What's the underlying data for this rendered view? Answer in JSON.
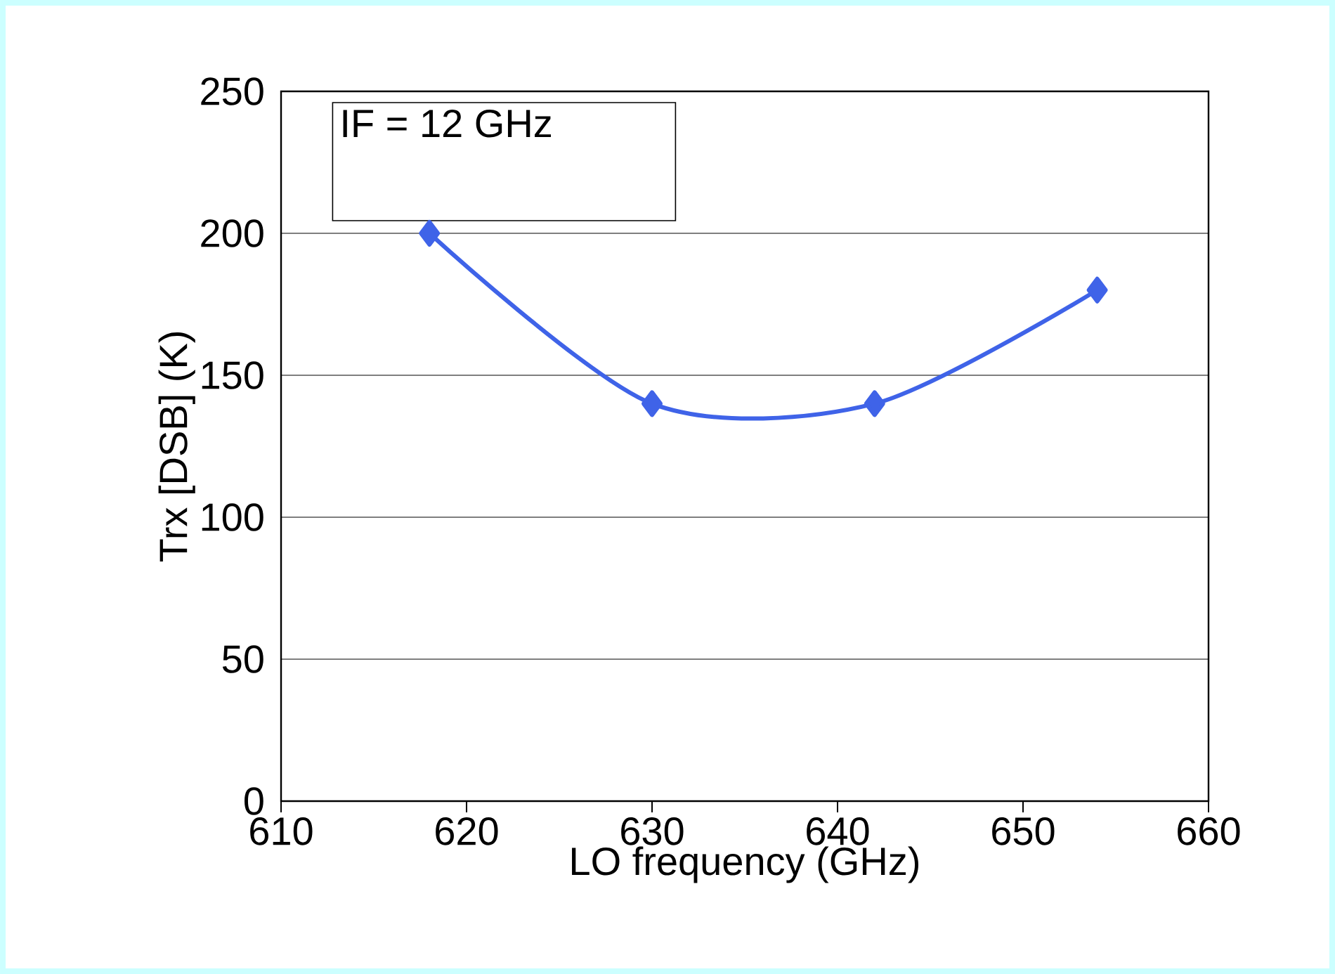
{
  "chart_data": {
    "type": "line",
    "xlabel": "LO frequency  (GHz)",
    "ylabel": "Trx [DSB]    (K)",
    "annotations": [
      "IF = 12 GHz"
    ],
    "x": [
      618,
      630,
      642,
      654
    ],
    "values": [
      200,
      140,
      140,
      180
    ],
    "color": "#3f63e8",
    "marker": "diamond",
    "xlim": [
      610,
      660
    ],
    "xticks": [
      610,
      620,
      630,
      640,
      650,
      660
    ],
    "ylim": [
      0,
      250
    ],
    "yticks": [
      0,
      50,
      100,
      150,
      200,
      250
    ],
    "grid": "y"
  }
}
